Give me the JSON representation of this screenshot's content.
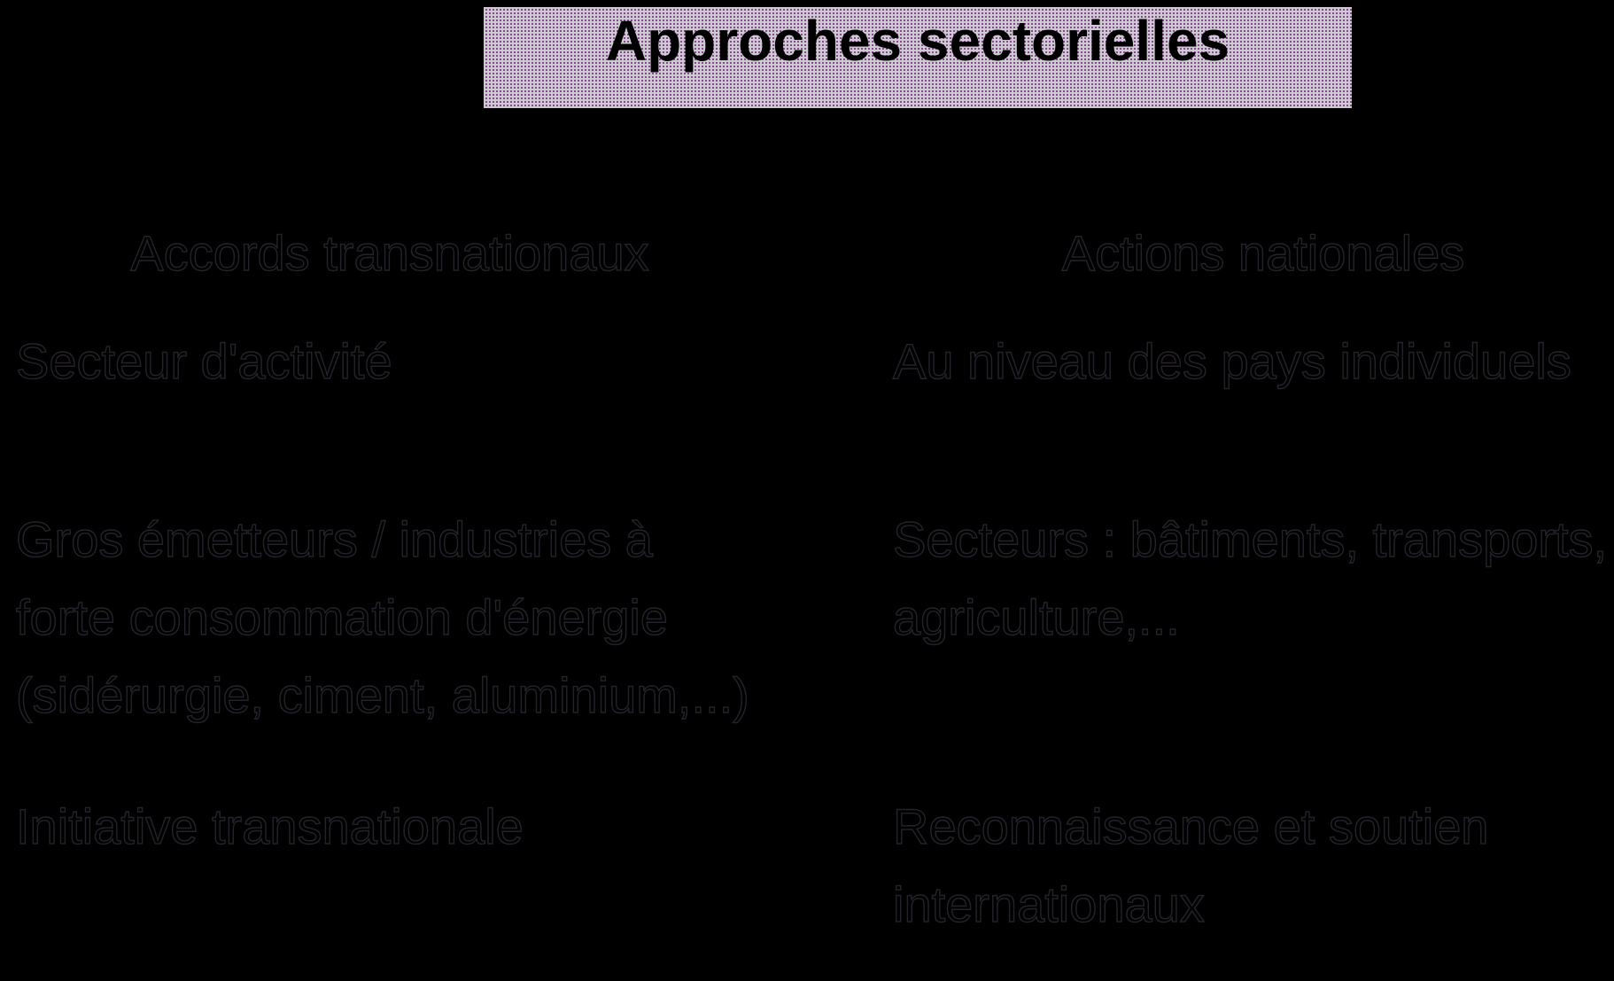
{
  "slide": {
    "title": "Approches sectorielles",
    "columns": [
      {
        "header": "Accords transnationaux",
        "items": [
          "Secteur d'activité",
          "Gros émetteurs / industries à\nforte consommation d'énergie\n(sidérurgie, ciment, aluminium,...)",
          "Initiative transnationale"
        ]
      },
      {
        "header": "Actions nationales",
        "items": [
          "Au niveau des pays individuels",
          "Secteurs : bâtiments, transports,\nagriculture,...",
          "Reconnaissance et soutien\ninternationaux"
        ]
      }
    ],
    "colors": {
      "slide_background": "#000000",
      "title_box_background": "#cfc9d3",
      "title_box_dot": "#6b2472",
      "title_text": "#000000",
      "body_text": "#000000"
    }
  }
}
